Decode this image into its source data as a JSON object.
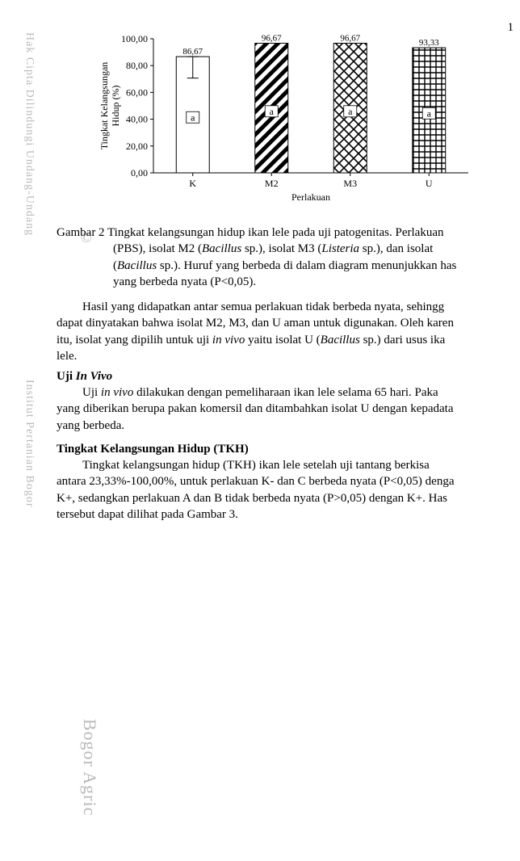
{
  "pageNumber": "1",
  "watermark": {
    "left1": "Hak Cipta Dilindungi Undang-Undang",
    "left2": "Institut Pertanian Bogor",
    "c": "©",
    "bottom": "Bogor Agric"
  },
  "chart": {
    "type": "bar",
    "ylabel_line1": "Tingkat Kelangsungan",
    "ylabel_line2": "Hidup (%)",
    "xlabel": "Perlakuan",
    "ylim": [
      0,
      100
    ],
    "yticks": [
      "0,00",
      "20,00",
      "40,00",
      "60,00",
      "80,00",
      "100,00"
    ],
    "categories": [
      "K",
      "M2",
      "M3",
      "U"
    ],
    "values": [
      86.67,
      96.67,
      96.67,
      93.33
    ],
    "value_labels": [
      "86,67",
      "96,67",
      "96,67",
      "93,33"
    ],
    "inbar_labels": [
      "a",
      "a",
      "a",
      "a"
    ],
    "error_bar": {
      "index": 0,
      "down": 16,
      "up": 0
    },
    "bar_width": 0.42,
    "patterns": [
      "open",
      "diag",
      "cross",
      "grid"
    ],
    "colors": {
      "axis": "#000000",
      "tick": "#000000",
      "bar_stroke": "#000000",
      "bg": "#ffffff",
      "label": "#000000",
      "value_label": "#000000"
    },
    "font": {
      "tick": 12,
      "axis_title": 12,
      "value": 11,
      "inbar": 12
    }
  },
  "caption": {
    "lead": "Gambar 2 Tingkat kelangsungan hidup ikan lele pada uji patogenitas. Perlakuan ",
    "l2": "(PBS), isolat M2 (",
    "i1": "Bacillus",
    "l3": " sp.), isolat M3 (",
    "i2": "Listeria",
    "l4": " sp.), dan isolat ",
    "l5": "(",
    "i3": "Bacillus",
    "l6": " sp.). Huruf yang berbeda di dalam diagram menunjukkan has",
    "l7": "yang berbeda nyata (P<0,05)."
  },
  "para1": {
    "t1": "Hasil yang didapatkan antar semua perlakuan tidak berbeda nyata, sehingg",
    "t2": "dapat dinyatakan bahwa isolat M2, M3, dan U aman untuk digunakan. Oleh karen",
    "t3": "itu, isolat yang dipilih untuk uji ",
    "i1": "in vivo",
    "t4": " yaitu isolat U (",
    "i2": "Bacillus",
    "t5": " sp.) dari usus ika",
    "t6": "lele."
  },
  "hdr1": "Uji ",
  "hdr1i": "In Vivo",
  "para2": {
    "t1": "Uji ",
    "i1": "in vivo",
    "t2": " dilakukan dengan pemeliharaan ikan lele selama 65 hari. Paka",
    "t3": "yang diberikan berupa pakan komersil dan ditambahkan isolat U dengan kepadata",
    "t4": "yang berbeda."
  },
  "hdr2": "Tingkat Kelangsungan Hidup (TKH)",
  "para3": {
    "t1": "Tingkat kelangsungan hidup (TKH) ikan lele setelah uji tantang berkisa",
    "t2": "antara 23,33%-100,00%, untuk perlakuan K- dan C berbeda nyata (P<0,05) denga",
    "t3": "K+, sedangkan perlakuan A dan B tidak berbeda nyata (P>0,05) dengan K+. Has",
    "t4": "tersebut dapat dilihat pada Gambar 3."
  }
}
